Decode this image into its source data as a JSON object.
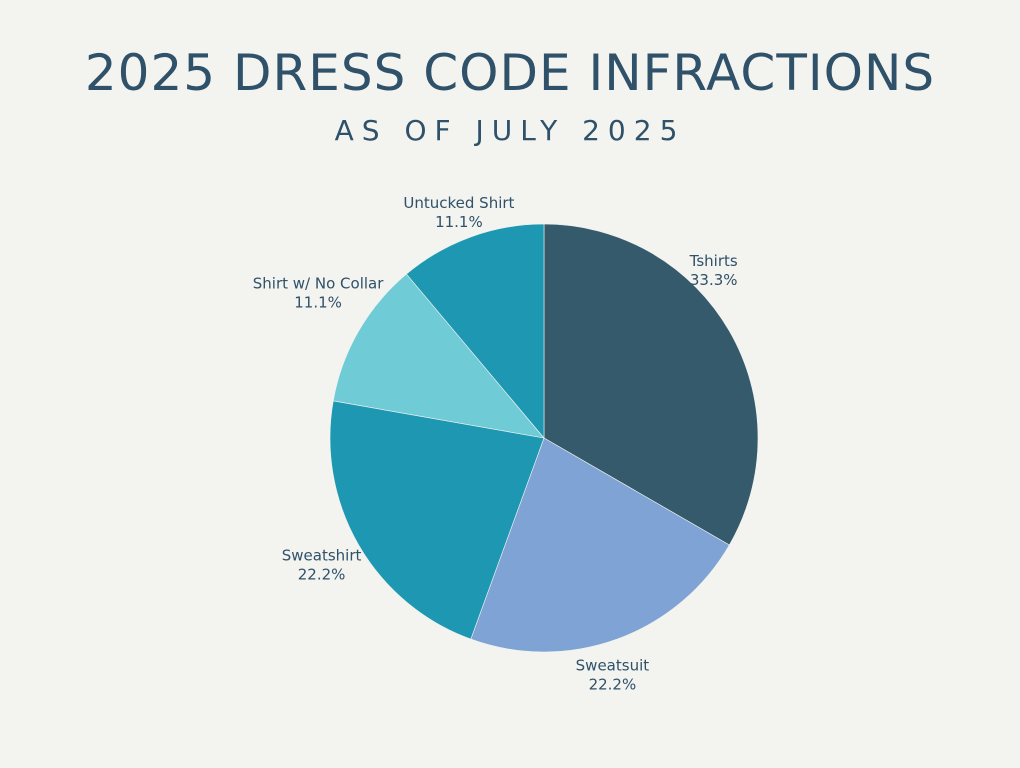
{
  "chart_data": {
    "type": "pie",
    "title": "2025 DRESS CODE INFRACTIONS",
    "subtitle": "AS OF JULY 2025",
    "slices": [
      {
        "label": "Tshirts",
        "value": 33.3,
        "value_label": "33.3%",
        "color": "#345a6b"
      },
      {
        "label": "Sweatsuit",
        "value": 22.2,
        "value_label": "22.2%",
        "color": "#7ea3d4"
      },
      {
        "label": "Sweatshirt",
        "value": 22.2,
        "value_label": "22.2%",
        "color": "#1e98b2"
      },
      {
        "label": "Shirt w/ No Collar",
        "value": 11.1,
        "value_label": "11.1%",
        "color": "#6fcbd6"
      },
      {
        "label": "Untucked Shirt",
        "value": 11.1,
        "value_label": "11.1%",
        "color": "#1e98b2"
      }
    ],
    "start": "12 o'clock",
    "direction": "clockwise"
  },
  "colors": {
    "background": "#f3f3ef",
    "text": "#2f5169"
  }
}
